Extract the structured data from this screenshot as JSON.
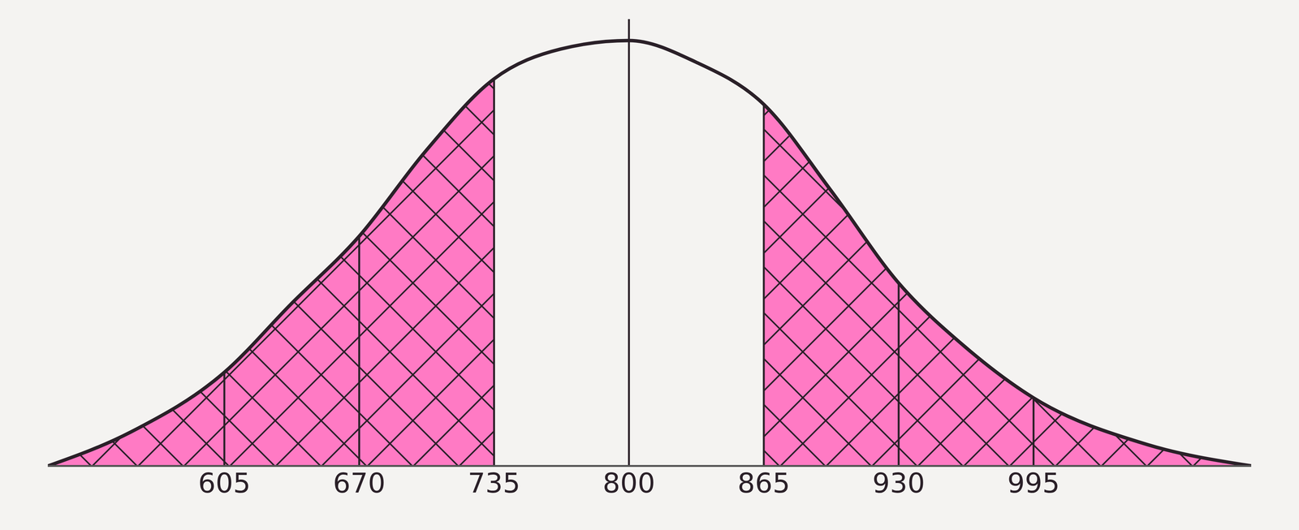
{
  "chart_data": {
    "type": "area",
    "x": [
      520,
      560,
      605,
      637,
      670,
      702,
      735,
      767,
      800,
      832,
      865,
      897,
      930,
      962,
      995,
      1050,
      1100
    ],
    "values": [
      0,
      0.08,
      0.22,
      0.38,
      0.54,
      0.74,
      0.91,
      0.98,
      1.0,
      0.95,
      0.85,
      0.65,
      0.43,
      0.28,
      0.16,
      0.05,
      0
    ],
    "xlim": [
      520,
      1100
    ],
    "xticks": [
      605,
      670,
      735,
      800,
      865,
      930,
      995
    ],
    "ylim": [
      0,
      1.05
    ],
    "tick_labels": "x",
    "color": "#ff7ac4",
    "shaded": [
      [
        520,
        735
      ],
      [
        865,
        1100
      ]
    ]
  }
}
